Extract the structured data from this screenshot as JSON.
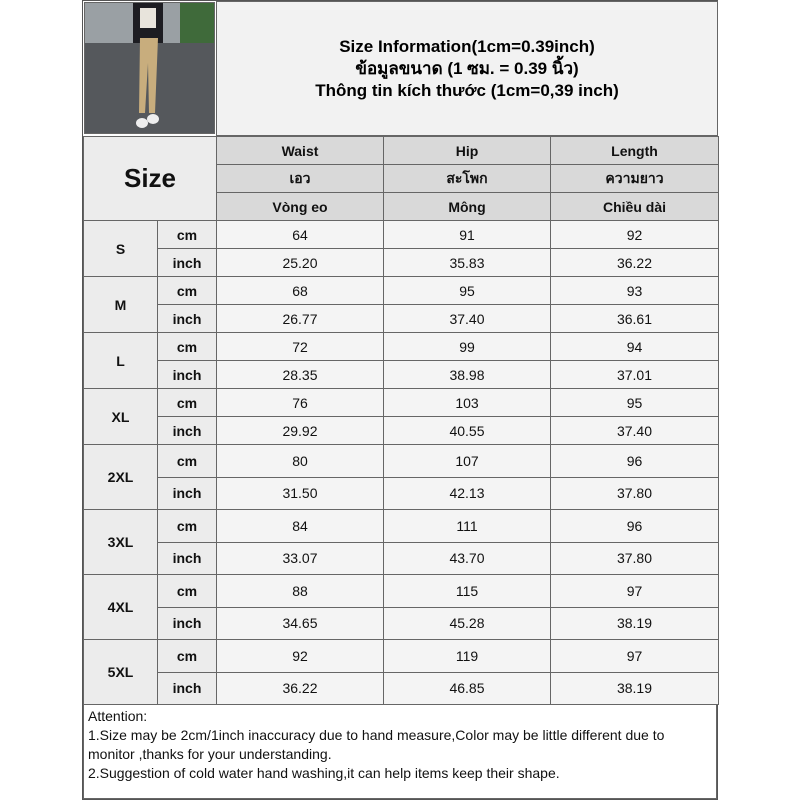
{
  "title_lines": [
    "Size Information(1cm=0.39inch)",
    "ข้อมูลขนาด (1 ซม. = 0.39 นิ้ว)",
    "Thông tin kích thước (1cm=0,39 inch)"
  ],
  "size_header": "Size",
  "columns": [
    {
      "en": "Waist",
      "th": "เอว",
      "vi": "Vòng eo"
    },
    {
      "en": "Hip",
      "th": "สะโพก",
      "vi": "Mông"
    },
    {
      "en": "Length",
      "th": "ความยาว",
      "vi": "Chiều dài"
    }
  ],
  "unit_labels": {
    "cm": "cm",
    "inch": "inch"
  },
  "rows": [
    {
      "size": "S",
      "cm": [
        "64",
        "91",
        "92"
      ],
      "inch": [
        "25.20",
        "35.83",
        "36.22"
      ]
    },
    {
      "size": "M",
      "cm": [
        "68",
        "95",
        "93"
      ],
      "inch": [
        "26.77",
        "37.40",
        "36.61"
      ]
    },
    {
      "size": "L",
      "cm": [
        "72",
        "99",
        "94"
      ],
      "inch": [
        "28.35",
        "38.98",
        "37.01"
      ]
    },
    {
      "size": "XL",
      "cm": [
        "76",
        "103",
        "95"
      ],
      "inch": [
        "29.92",
        "40.55",
        "37.40"
      ]
    },
    {
      "size": "2XL",
      "cm": [
        "80",
        "107",
        "96"
      ],
      "inch": [
        "31.50",
        "42.13",
        "37.80"
      ]
    },
    {
      "size": "3XL",
      "cm": [
        "84",
        "111",
        "96"
      ],
      "inch": [
        "33.07",
        "43.70",
        "37.80"
      ]
    },
    {
      "size": "4XL",
      "cm": [
        "88",
        "115",
        "97"
      ],
      "inch": [
        "34.65",
        "45.28",
        "38.19"
      ]
    },
    {
      "size": "5XL",
      "cm": [
        "92",
        "119",
        "97"
      ],
      "inch": [
        "36.22",
        "46.85",
        "38.19"
      ]
    }
  ],
  "notes": {
    "heading": "Attention:",
    "items": [
      "1.Size may be 2cm/1inch inaccuracy due to hand measure,Color may be little different due to monitor ,thanks for your understanding.",
      "2.Suggestion of cold water hand washing,it can help items keep their shape."
    ]
  }
}
